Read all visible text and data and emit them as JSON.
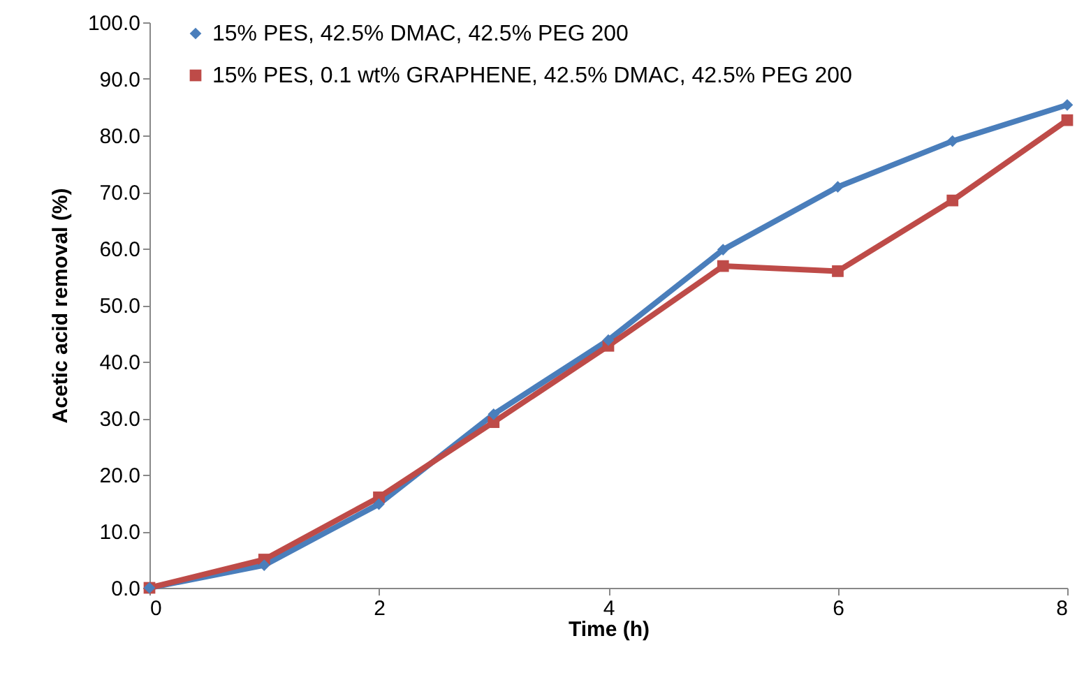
{
  "chart_data": {
    "type": "line",
    "xlabel": "Time (h)",
    "ylabel": "Acetic acid removal (%)",
    "x": [
      0,
      1,
      2,
      3,
      4,
      5,
      6,
      7,
      8
    ],
    "xlim": [
      0,
      8
    ],
    "xticks": [
      0,
      2,
      4,
      6,
      8
    ],
    "ylim": [
      0,
      100
    ],
    "yticks": [
      {
        "value": 0,
        "label": "0.0"
      },
      {
        "value": 10,
        "label": "10.0"
      },
      {
        "value": 20,
        "label": "20.0"
      },
      {
        "value": 30,
        "label": "30.0"
      },
      {
        "value": 40,
        "label": "40.0"
      },
      {
        "value": 50,
        "label": "50.0"
      },
      {
        "value": 60,
        "label": "60.0"
      },
      {
        "value": 70,
        "label": "70.0"
      },
      {
        "value": 80,
        "label": "80.0"
      },
      {
        "value": 90,
        "label": "90.0"
      },
      {
        "value": 100,
        "label": "100.0"
      }
    ],
    "grid": false,
    "legend": "top left",
    "line_style": "solid",
    "series": [
      {
        "name": "15% PES, 42.5% DMAC, 42.5% PEG 200",
        "color": "#4a7ebb",
        "marker": "diamond",
        "values": [
          0,
          4,
          14.8,
          30.7,
          43.8,
          59.8,
          70.9,
          79,
          85.4
        ]
      },
      {
        "name": "15% PES, 0.1 wt% GRAPHENE, 42.5% DMAC, 42.5% PEG 200",
        "color": "#be4b48",
        "marker": "square",
        "values": [
          0,
          5,
          16,
          29.3,
          42.8,
          56.9,
          56,
          68.5,
          82.7
        ]
      }
    ]
  }
}
